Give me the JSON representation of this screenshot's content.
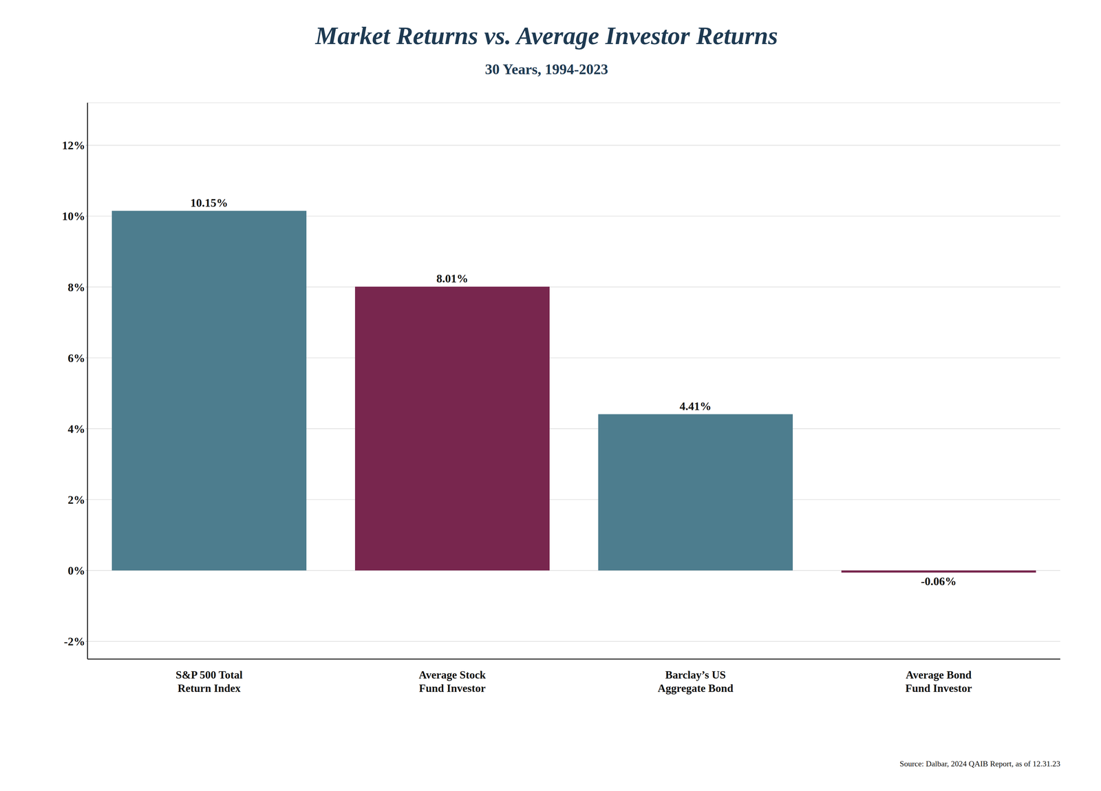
{
  "chart_data": {
    "type": "bar",
    "title": "Market Returns vs. Average Investor Returns",
    "subtitle": "30 Years, 1994-2023",
    "categories": [
      "S&P 500 Total\nReturn Index",
      "Average Stock\nFund Investor",
      "Barclay’s US\nAggregate Bond",
      "Average Bond\nFund Investor"
    ],
    "values": [
      10.15,
      8.01,
      4.41,
      -0.06
    ],
    "value_labels": [
      "10.15%",
      "8.01%",
      "4.41%",
      "-0.06%"
    ],
    "data_labels": true,
    "colors": [
      "#4d7d8e",
      "#78264e",
      "#4d7d8e",
      "#78264e"
    ],
    "ylim": [
      -2.5,
      13.2
    ],
    "yticks": [
      {
        "value": -2,
        "label": "-2%"
      },
      {
        "value": 0,
        "label": "0%"
      },
      {
        "value": 2,
        "label": "2%"
      },
      {
        "value": 4,
        "label": "4%"
      },
      {
        "value": 6,
        "label": "6%"
      },
      {
        "value": 8,
        "label": "8%"
      },
      {
        "value": 10,
        "label": "10%"
      },
      {
        "value": 12,
        "label": "12%"
      }
    ],
    "grid": true,
    "annotations": [
      "Source: Dalbar, 2024 QAIB Report, as of 12.31.23"
    ]
  }
}
